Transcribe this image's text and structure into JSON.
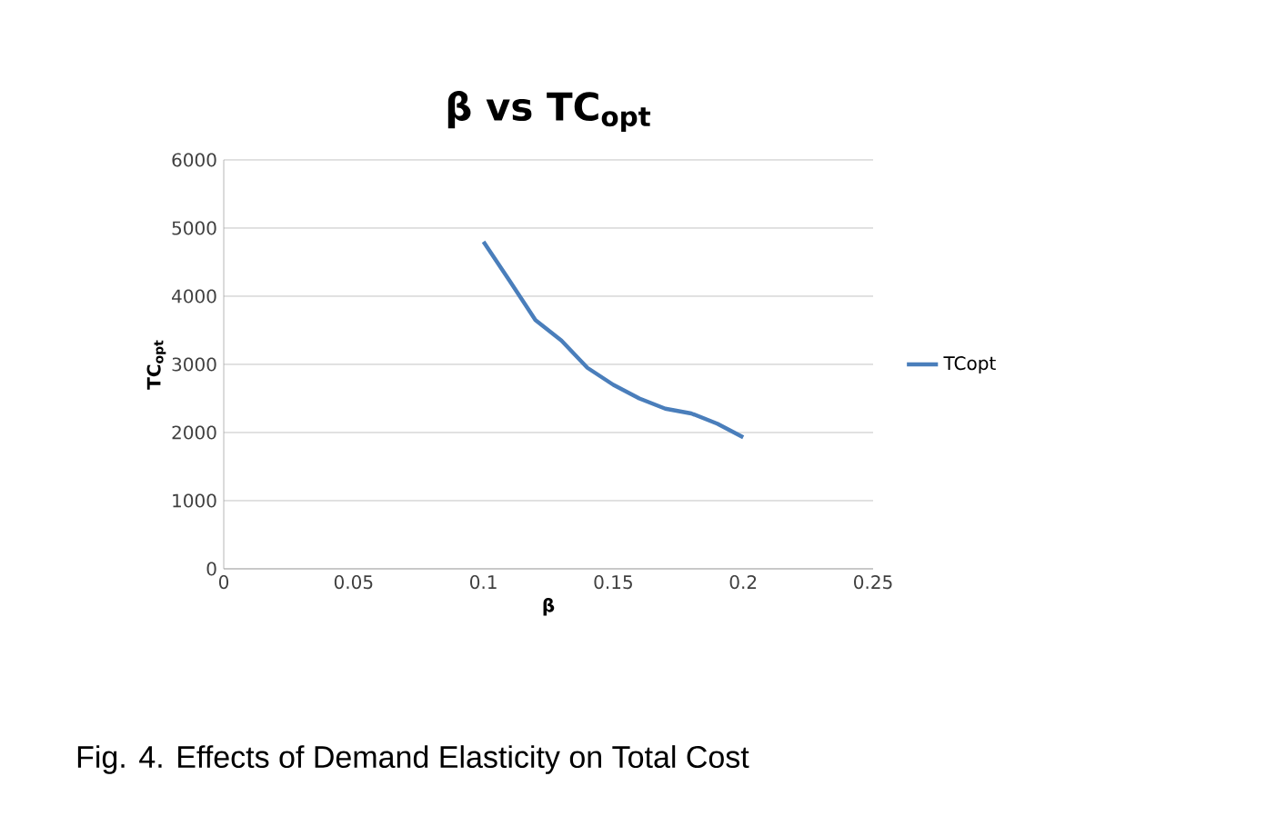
{
  "chart_data": {
    "type": "line",
    "title": "β vs TC$_{opt}$",
    "xlabel": "β",
    "ylabel": "TC$_{opt}$",
    "x": [
      0.1,
      0.11,
      0.12,
      0.13,
      0.14,
      0.15,
      0.16,
      0.17,
      0.18,
      0.19,
      0.2
    ],
    "series": [
      {
        "name": "TCopt",
        "color": "#4a7ebb",
        "values": [
          4800,
          4230,
          3650,
          3350,
          2950,
          2700,
          2500,
          2350,
          2280,
          2130,
          1930
        ]
      }
    ],
    "xlim": [
      0,
      0.25
    ],
    "ylim": [
      0,
      6000
    ],
    "xticks": [
      0,
      0.05,
      0.1,
      0.15,
      0.2,
      0.25
    ],
    "yticks": [
      0,
      1000,
      2000,
      3000,
      4000,
      5000,
      6000
    ],
    "grid": "y",
    "legend": "right",
    "marker": "none",
    "line_style": "solid",
    "annotations": [
      "Fig. 4. Effects of Demand Elasticity on Total Cost"
    ]
  }
}
